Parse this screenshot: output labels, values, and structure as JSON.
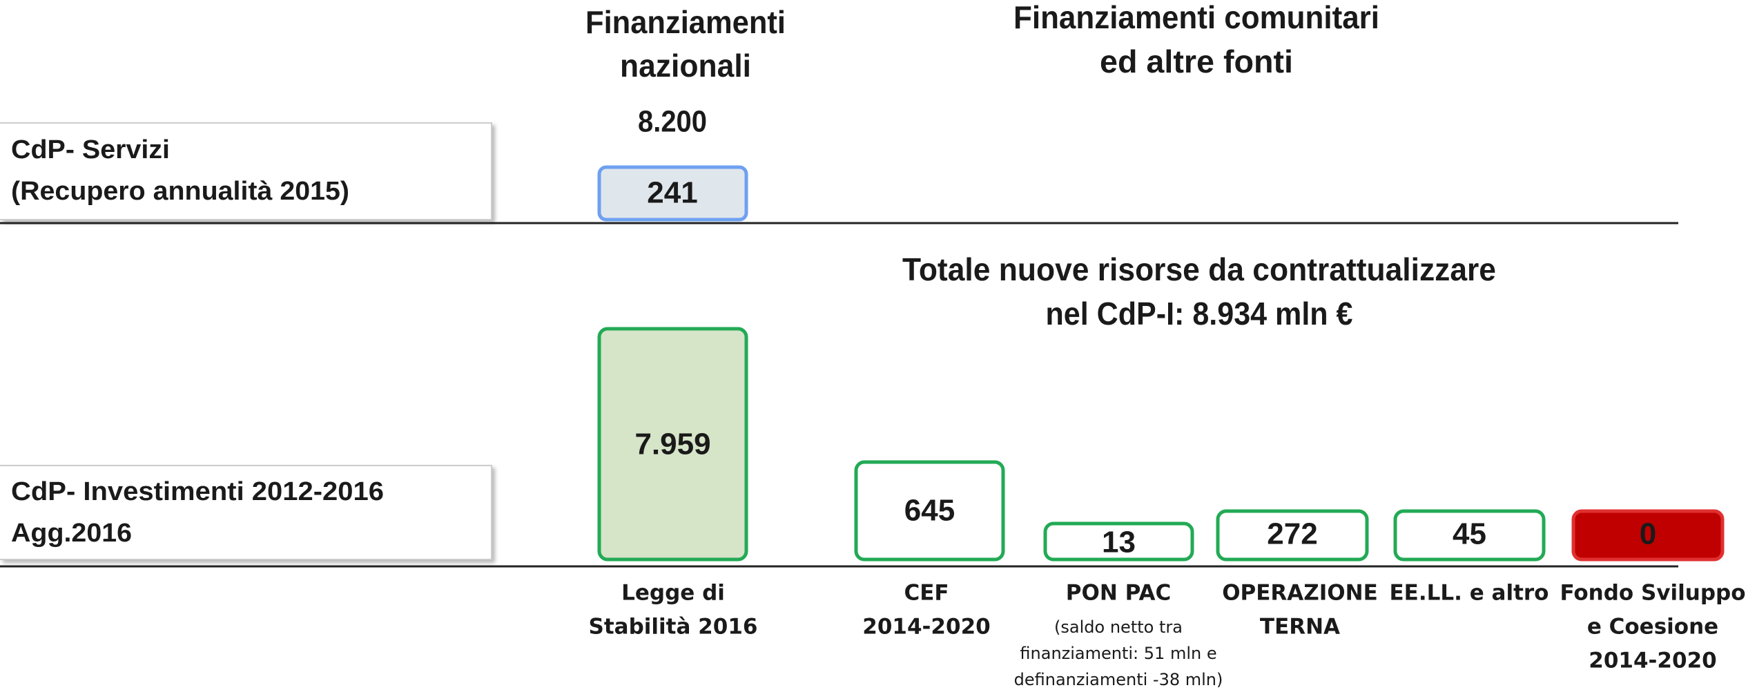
{
  "headers": {
    "national": [
      "Finanziamenti",
      "nazionali"
    ],
    "community": [
      "Finanziamenti comunitari",
      "ed altre fonti"
    ]
  },
  "rows": [
    {
      "label": [
        "CdP- Servizi",
        "(Recupero annualità 2015)"
      ],
      "total": "8.200",
      "value": "241"
    },
    {
      "label": [
        "CdP- Investimenti  2012-2016",
        "Agg.2016"
      ]
    }
  ],
  "total_title": [
    "Totale nuove risorse da contrattualizzare",
    "nel CdP-I: 8.934 mln €"
  ],
  "boxes": [
    {
      "value": "7.959",
      "label": [
        "Legge di",
        "Stabilità 2016"
      ]
    },
    {
      "value": "645",
      "label": [
        "CEF",
        "2014-2020"
      ]
    },
    {
      "value": "13",
      "label": [
        "PON PAC"
      ],
      "note": [
        "(saldo netto tra",
        "finanziamenti: 51 mln e",
        "definanziamenti -38 mln)"
      ]
    },
    {
      "value": "272",
      "label": [
        "OPERAZIONE",
        "TERNA"
      ]
    },
    {
      "value": "45",
      "label": [
        "EE.LL. e altro"
      ]
    },
    {
      "value": "0",
      "label": [
        "Fondo Sviluppo",
        "e Coesione",
        "2014-2020"
      ]
    }
  ]
}
